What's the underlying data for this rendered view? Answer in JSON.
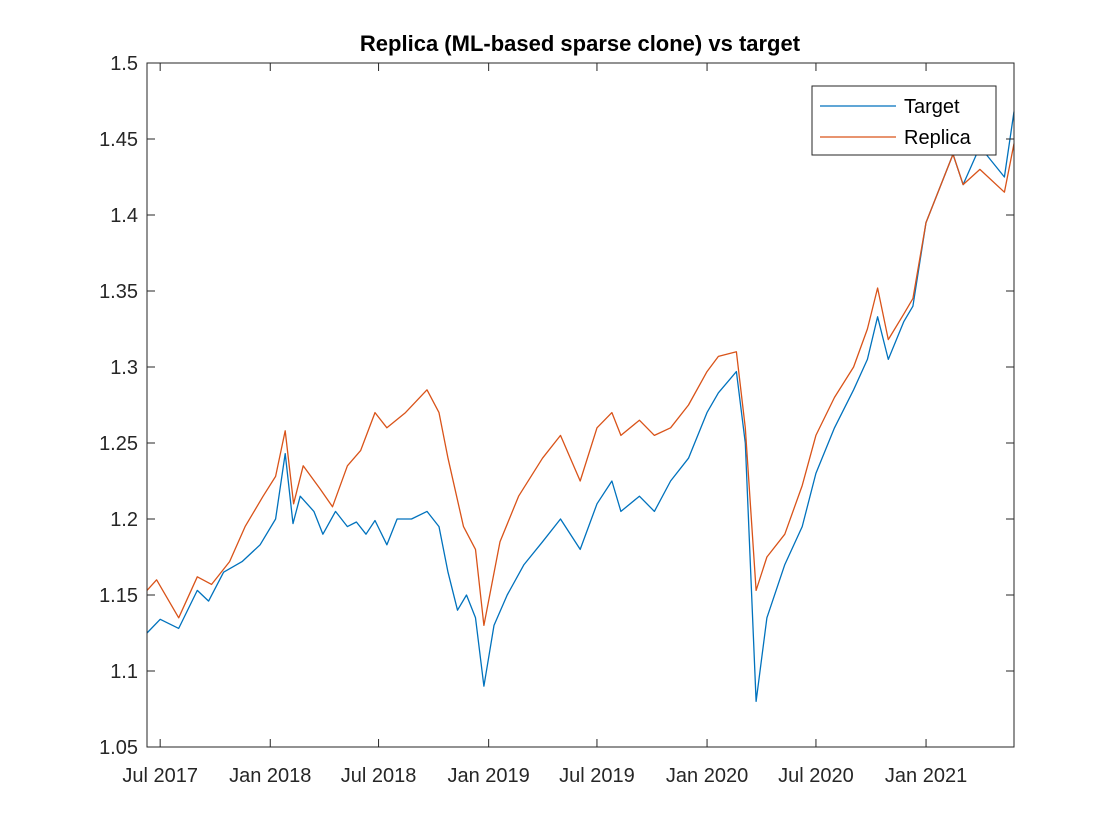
{
  "chart_data": {
    "type": "line",
    "title": "Replica (ML-based sparse clone) vs target",
    "xlabel": "",
    "ylabel": "",
    "x_range": [
      "2017-06-09",
      "2021-05-28"
    ],
    "ylim": [
      1.05,
      1.5
    ],
    "y_ticks": [
      "1.05",
      "1.1",
      "1.15",
      "1.2",
      "1.25",
      "1.3",
      "1.35",
      "1.4",
      "1.45",
      "1.5"
    ],
    "x_ticks": [
      {
        "date": "2017-07-01",
        "label": "Jul 2017"
      },
      {
        "date": "2018-01-01",
        "label": "Jan 2018"
      },
      {
        "date": "2018-07-01",
        "label": "Jul 2018"
      },
      {
        "date": "2019-01-01",
        "label": "Jan 2019"
      },
      {
        "date": "2019-07-01",
        "label": "Jul 2019"
      },
      {
        "date": "2020-01-01",
        "label": "Jan 2020"
      },
      {
        "date": "2020-07-01",
        "label": "Jul 2020"
      },
      {
        "date": "2021-01-01",
        "label": "Jan 2021"
      }
    ],
    "grid": false,
    "legend_position": "top-right",
    "series": [
      {
        "name": "Target",
        "color": "#0072BD",
        "points": [
          [
            "2017-06-09",
            1.125
          ],
          [
            "2017-07-01",
            1.134
          ],
          [
            "2017-08-01",
            1.128
          ],
          [
            "2017-09-01",
            1.153
          ],
          [
            "2017-09-20",
            1.146
          ],
          [
            "2017-10-15",
            1.165
          ],
          [
            "2017-11-15",
            1.172
          ],
          [
            "2017-12-15",
            1.183
          ],
          [
            "2018-01-10",
            1.2
          ],
          [
            "2018-01-26",
            1.243
          ],
          [
            "2018-02-08",
            1.197
          ],
          [
            "2018-02-20",
            1.215
          ],
          [
            "2018-03-15",
            1.205
          ],
          [
            "2018-03-30",
            1.19
          ],
          [
            "2018-04-20",
            1.205
          ],
          [
            "2018-05-10",
            1.195
          ],
          [
            "2018-05-25",
            1.198
          ],
          [
            "2018-06-10",
            1.19
          ],
          [
            "2018-06-25",
            1.199
          ],
          [
            "2018-07-15",
            1.183
          ],
          [
            "2018-08-01",
            1.2
          ],
          [
            "2018-08-25",
            1.2
          ],
          [
            "2018-09-20",
            1.205
          ],
          [
            "2018-10-10",
            1.195
          ],
          [
            "2018-10-25",
            1.165
          ],
          [
            "2018-11-10",
            1.14
          ],
          [
            "2018-11-25",
            1.15
          ],
          [
            "2018-12-10",
            1.135
          ],
          [
            "2018-12-24",
            1.09
          ],
          [
            "2019-01-10",
            1.13
          ],
          [
            "2019-02-01",
            1.15
          ],
          [
            "2019-03-01",
            1.17
          ],
          [
            "2019-04-01",
            1.185
          ],
          [
            "2019-05-01",
            1.2
          ],
          [
            "2019-06-03",
            1.18
          ],
          [
            "2019-07-01",
            1.21
          ],
          [
            "2019-07-26",
            1.225
          ],
          [
            "2019-08-10",
            1.205
          ],
          [
            "2019-09-10",
            1.215
          ],
          [
            "2019-10-05",
            1.205
          ],
          [
            "2019-11-01",
            1.225
          ],
          [
            "2019-12-01",
            1.24
          ],
          [
            "2020-01-01",
            1.27
          ],
          [
            "2020-01-20",
            1.283
          ],
          [
            "2020-02-19",
            1.297
          ],
          [
            "2020-03-05",
            1.25
          ],
          [
            "2020-03-23",
            1.08
          ],
          [
            "2020-04-10",
            1.135
          ],
          [
            "2020-05-10",
            1.17
          ],
          [
            "2020-06-08",
            1.195
          ],
          [
            "2020-07-01",
            1.23
          ],
          [
            "2020-08-01",
            1.26
          ],
          [
            "2020-09-02",
            1.285
          ],
          [
            "2020-09-25",
            1.305
          ],
          [
            "2020-10-12",
            1.333
          ],
          [
            "2020-10-30",
            1.305
          ],
          [
            "2020-11-25",
            1.33
          ],
          [
            "2020-12-10",
            1.34
          ],
          [
            "2021-01-01",
            1.395
          ],
          [
            "2021-02-15",
            1.44
          ],
          [
            "2021-03-04",
            1.42
          ],
          [
            "2021-04-01",
            1.445
          ],
          [
            "2021-05-12",
            1.425
          ],
          [
            "2021-05-28",
            1.468
          ]
        ]
      },
      {
        "name": "Replica",
        "color": "#D95319",
        "points": [
          [
            "2017-06-09",
            1.153
          ],
          [
            "2017-06-25",
            1.16
          ],
          [
            "2017-08-01",
            1.135
          ],
          [
            "2017-09-01",
            1.162
          ],
          [
            "2017-09-25",
            1.157
          ],
          [
            "2017-10-25",
            1.172
          ],
          [
            "2017-11-20",
            1.195
          ],
          [
            "2017-12-20",
            1.215
          ],
          [
            "2018-01-10",
            1.228
          ],
          [
            "2018-01-26",
            1.258
          ],
          [
            "2018-02-09",
            1.21
          ],
          [
            "2018-02-25",
            1.235
          ],
          [
            "2018-03-25",
            1.22
          ],
          [
            "2018-04-15",
            1.208
          ],
          [
            "2018-05-10",
            1.235
          ],
          [
            "2018-06-01",
            1.245
          ],
          [
            "2018-06-25",
            1.27
          ],
          [
            "2018-07-15",
            1.26
          ],
          [
            "2018-08-15",
            1.27
          ],
          [
            "2018-09-20",
            1.285
          ],
          [
            "2018-10-10",
            1.27
          ],
          [
            "2018-10-25",
            1.24
          ],
          [
            "2018-11-20",
            1.195
          ],
          [
            "2018-12-10",
            1.18
          ],
          [
            "2018-12-24",
            1.13
          ],
          [
            "2019-01-20",
            1.185
          ],
          [
            "2019-02-20",
            1.215
          ],
          [
            "2019-04-01",
            1.24
          ],
          [
            "2019-05-01",
            1.255
          ],
          [
            "2019-06-03",
            1.225
          ],
          [
            "2019-07-01",
            1.26
          ],
          [
            "2019-07-26",
            1.27
          ],
          [
            "2019-08-10",
            1.255
          ],
          [
            "2019-09-10",
            1.265
          ],
          [
            "2019-10-05",
            1.255
          ],
          [
            "2019-11-01",
            1.26
          ],
          [
            "2019-12-01",
            1.275
          ],
          [
            "2020-01-01",
            1.297
          ],
          [
            "2020-01-20",
            1.307
          ],
          [
            "2020-02-19",
            1.31
          ],
          [
            "2020-03-05",
            1.26
          ],
          [
            "2020-03-23",
            1.153
          ],
          [
            "2020-04-10",
            1.175
          ],
          [
            "2020-05-10",
            1.19
          ],
          [
            "2020-06-08",
            1.222
          ],
          [
            "2020-07-01",
            1.255
          ],
          [
            "2020-08-01",
            1.28
          ],
          [
            "2020-09-02",
            1.3
          ],
          [
            "2020-09-25",
            1.325
          ],
          [
            "2020-10-12",
            1.352
          ],
          [
            "2020-10-30",
            1.318
          ],
          [
            "2020-11-25",
            1.335
          ],
          [
            "2020-12-10",
            1.345
          ],
          [
            "2021-01-01",
            1.395
          ],
          [
            "2021-02-15",
            1.44
          ],
          [
            "2021-03-04",
            1.42
          ],
          [
            "2021-04-01",
            1.43
          ],
          [
            "2021-05-12",
            1.415
          ],
          [
            "2021-05-28",
            1.447
          ]
        ]
      }
    ]
  }
}
